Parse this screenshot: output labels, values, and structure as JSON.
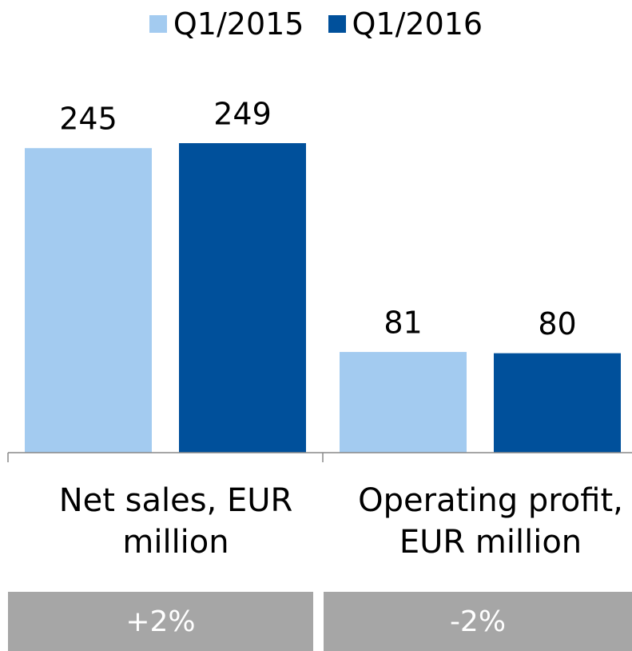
{
  "chart_data": {
    "type": "bar",
    "categories": [
      "Net sales, EUR million",
      "Operating profit, EUR million"
    ],
    "series": [
      {
        "name": "Q1/2015",
        "color": "#a3cbf0",
        "values": [
          245,
          81
        ]
      },
      {
        "name": "Q1/2016",
        "color": "#00509b",
        "values": [
          249,
          80
        ]
      }
    ],
    "changes": [
      "+2%",
      "-2%"
    ],
    "change_color": "#a6a6a6"
  }
}
